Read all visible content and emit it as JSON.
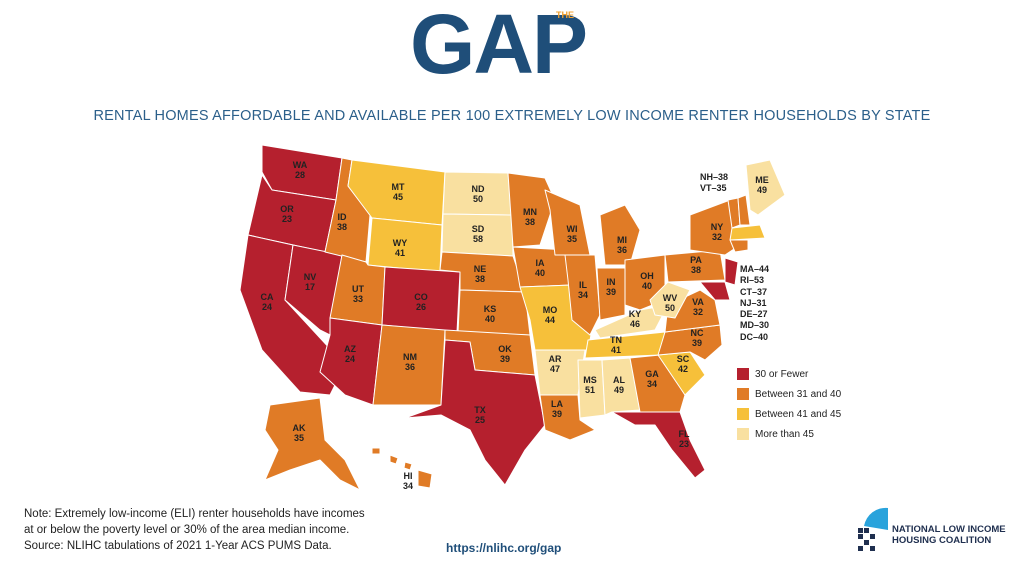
{
  "logo": {
    "text": "GAP",
    "superscript": "THE"
  },
  "subtitle": "RENTAL HOMES AFFORDABLE AND AVAILABLE PER 100 EXTREMELY LOW INCOME RENTER HOUSEHOLDS BY STATE",
  "colors": {
    "c1": "#b5202e",
    "c2": "#e07b26",
    "c3": "#f6c03a",
    "c4": "#f9e0a0",
    "title": "#2b5f8a",
    "logo": "#1f4e79"
  },
  "legend": [
    {
      "label": "30 or Fewer",
      "color": "#b5202e"
    },
    {
      "label": "Between 31 and 40",
      "color": "#e07b26"
    },
    {
      "label": "Between 41 and 45",
      "color": "#f6c03a"
    },
    {
      "label": "More than 45",
      "color": "#f9e0a0"
    }
  ],
  "states": {
    "WA": "28",
    "OR": "23",
    "CA": "24",
    "NV": "17",
    "ID": "38",
    "MT": "45",
    "WY": "41",
    "UT": "33",
    "AZ": "24",
    "CO": "26",
    "NM": "36",
    "ND": "50",
    "SD": "58",
    "NE": "38",
    "KS": "40",
    "OK": "39",
    "TX": "25",
    "MN": "38",
    "IA": "40",
    "MO": "44",
    "AR": "47",
    "LA": "39",
    "WI": "35",
    "IL": "34",
    "MI": "36",
    "IN": "39",
    "OH": "40",
    "KY": "46",
    "TN": "41",
    "MS": "51",
    "AL": "49",
    "GA": "34",
    "FL": "23",
    "SC": "42",
    "NC": "39",
    "VA": "32",
    "WV": "50",
    "PA": "38",
    "NY": "32",
    "ME": "49",
    "AK": "35",
    "HI": "34"
  },
  "ne_small": [
    "NH–38",
    "VT–35"
  ],
  "east_small": [
    "MA–44",
    "RI–53",
    "CT–37",
    "NJ–31",
    "DE–27",
    "MD–30",
    "DC–40"
  ],
  "note": {
    "line1": "Note: Extremely low-income (ELI) renter households have incomes",
    "line2": "at or below the poverty level or 30% of the area median income.",
    "line3": "Source: NLIHC tabulations of 2021 1-Year ACS PUMS Data."
  },
  "url": "https://nlihc.org/gap",
  "org": {
    "line1": "NATIONAL LOW INCOME",
    "line2": "HOUSING COALITION"
  }
}
